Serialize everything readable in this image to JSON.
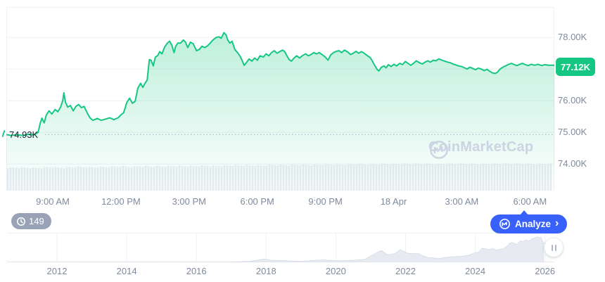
{
  "watermark": {
    "text": "CoinMarketCap"
  },
  "history_badge": {
    "count": "149"
  },
  "analyze_button": {
    "label": "Analyze",
    "chevron": "›"
  },
  "colors": {
    "accent_green": "#16c784",
    "accent_blue": "#3861fb",
    "axis_text": "#7f8a9d",
    "grid": "#eef1f6",
    "dotted_baseline": "#a8b1c2",
    "volume_bar": "#e9edf3",
    "history_fill": "#e7ebf1",
    "history_stroke": "#d8dee8",
    "watermark": "#ccd3e2",
    "badge_gray": "#99a3b5",
    "dark_text": "#1a2433"
  },
  "chart_data": [
    {
      "type": "area",
      "name": "btc-price-24h",
      "line_color": "#16c784",
      "x_ticks": [
        "9:00 AM",
        "12:00 PM",
        "3:00 PM",
        "6:00 PM",
        "9:00 PM",
        "18 Apr",
        "3:00 AM",
        "6:00 AM"
      ],
      "y_ticks": [
        {
          "value": 78,
          "label": "78.00K"
        },
        {
          "value": 77,
          "label": null
        },
        {
          "value": 76,
          "label": "76.00K"
        },
        {
          "value": 75,
          "label": "75.00K"
        },
        {
          "value": 74,
          "label": "74.00K"
        }
      ],
      "ylim": [
        73.16,
        78.96
      ],
      "open_value": 74.93,
      "open_label": "74.93K",
      "last_value": 77.12,
      "last_label": "77.12K",
      "points": [
        [
          0,
          74.93
        ],
        [
          0.009,
          74.9
        ],
        [
          0.019,
          74.93
        ],
        [
          0.03,
          74.9
        ],
        [
          0.04,
          74.94
        ],
        [
          0.05,
          74.92
        ],
        [
          0.058,
          75.0
        ],
        [
          0.062,
          75.3
        ],
        [
          0.065,
          75.45
        ],
        [
          0.069,
          75.3
        ],
        [
          0.073,
          75.55
        ],
        [
          0.078,
          75.68
        ],
        [
          0.083,
          75.58
        ],
        [
          0.089,
          75.72
        ],
        [
          0.094,
          75.65
        ],
        [
          0.099,
          75.8
        ],
        [
          0.103,
          76.0
        ],
        [
          0.105,
          76.25
        ],
        [
          0.108,
          75.95
        ],
        [
          0.112,
          75.8
        ],
        [
          0.117,
          75.85
        ],
        [
          0.122,
          75.68
        ],
        [
          0.127,
          75.82
        ],
        [
          0.132,
          75.88
        ],
        [
          0.137,
          75.78
        ],
        [
          0.142,
          75.82
        ],
        [
          0.148,
          75.6
        ],
        [
          0.153,
          75.45
        ],
        [
          0.158,
          75.38
        ],
        [
          0.166,
          75.44
        ],
        [
          0.173,
          75.38
        ],
        [
          0.181,
          75.42
        ],
        [
          0.189,
          75.46
        ],
        [
          0.196,
          75.4
        ],
        [
          0.204,
          75.46
        ],
        [
          0.209,
          75.55
        ],
        [
          0.214,
          75.62
        ],
        [
          0.22,
          75.95
        ],
        [
          0.225,
          76.08
        ],
        [
          0.23,
          75.92
        ],
        [
          0.235,
          75.98
        ],
        [
          0.24,
          76.4
        ],
        [
          0.245,
          76.55
        ],
        [
          0.249,
          76.42
        ],
        [
          0.253,
          76.55
        ],
        [
          0.257,
          76.65
        ],
        [
          0.261,
          77.3
        ],
        [
          0.264,
          77.28
        ],
        [
          0.268,
          77.1
        ],
        [
          0.272,
          77.38
        ],
        [
          0.276,
          77.42
        ],
        [
          0.28,
          77.55
        ],
        [
          0.284,
          77.48
        ],
        [
          0.289,
          77.7
        ],
        [
          0.294,
          77.82
        ],
        [
          0.298,
          77.88
        ],
        [
          0.302,
          77.75
        ],
        [
          0.306,
          77.52
        ],
        [
          0.309,
          77.72
        ],
        [
          0.313,
          77.82
        ],
        [
          0.318,
          77.82
        ],
        [
          0.323,
          77.92
        ],
        [
          0.327,
          77.85
        ],
        [
          0.331,
          77.68
        ],
        [
          0.336,
          77.85
        ],
        [
          0.341,
          77.8
        ],
        [
          0.347,
          77.58
        ],
        [
          0.352,
          77.62
        ],
        [
          0.357,
          77.72
        ],
        [
          0.362,
          77.68
        ],
        [
          0.367,
          77.73
        ],
        [
          0.372,
          77.82
        ],
        [
          0.377,
          77.92
        ],
        [
          0.383,
          78.0
        ],
        [
          0.388,
          78.02
        ],
        [
          0.392,
          77.97
        ],
        [
          0.397,
          78.15
        ],
        [
          0.401,
          78.08
        ],
        [
          0.404,
          77.92
        ],
        [
          0.408,
          77.82
        ],
        [
          0.412,
          77.88
        ],
        [
          0.417,
          77.62
        ],
        [
          0.422,
          77.52
        ],
        [
          0.426,
          77.42
        ],
        [
          0.43,
          77.28
        ],
        [
          0.434,
          77.12
        ],
        [
          0.438,
          77.2
        ],
        [
          0.443,
          77.32
        ],
        [
          0.448,
          77.25
        ],
        [
          0.453,
          77.35
        ],
        [
          0.458,
          77.28
        ],
        [
          0.463,
          77.42
        ],
        [
          0.469,
          77.38
        ],
        [
          0.474,
          77.48
        ],
        [
          0.479,
          77.42
        ],
        [
          0.484,
          77.52
        ],
        [
          0.489,
          77.58
        ],
        [
          0.494,
          77.5
        ],
        [
          0.499,
          77.55
        ],
        [
          0.504,
          77.6
        ],
        [
          0.508,
          77.55
        ],
        [
          0.512,
          77.42
        ],
        [
          0.516,
          77.3
        ],
        [
          0.52,
          77.25
        ],
        [
          0.525,
          77.35
        ],
        [
          0.53,
          77.42
        ],
        [
          0.535,
          77.35
        ],
        [
          0.54,
          77.42
        ],
        [
          0.546,
          77.48
        ],
        [
          0.551,
          77.42
        ],
        [
          0.556,
          77.46
        ],
        [
          0.561,
          77.52
        ],
        [
          0.566,
          77.48
        ],
        [
          0.571,
          77.52
        ],
        [
          0.576,
          77.46
        ],
        [
          0.582,
          77.38
        ],
        [
          0.587,
          77.28
        ],
        [
          0.592,
          77.45
        ],
        [
          0.597,
          77.52
        ],
        [
          0.602,
          77.56
        ],
        [
          0.607,
          77.58
        ],
        [
          0.612,
          77.52
        ],
        [
          0.617,
          77.6
        ],
        [
          0.623,
          77.54
        ],
        [
          0.628,
          77.46
        ],
        [
          0.633,
          77.5
        ],
        [
          0.638,
          77.56
        ],
        [
          0.643,
          77.5
        ],
        [
          0.648,
          77.55
        ],
        [
          0.653,
          77.5
        ],
        [
          0.659,
          77.42
        ],
        [
          0.664,
          77.36
        ],
        [
          0.668,
          77.25
        ],
        [
          0.671,
          77.15
        ],
        [
          0.677,
          76.98
        ],
        [
          0.68,
          76.94
        ],
        [
          0.684,
          77.05
        ],
        [
          0.689,
          77.1
        ],
        [
          0.693,
          77.04
        ],
        [
          0.697,
          77.14
        ],
        [
          0.702,
          77.08
        ],
        [
          0.707,
          77.15
        ],
        [
          0.712,
          77.1
        ],
        [
          0.718,
          77.18
        ],
        [
          0.723,
          77.14
        ],
        [
          0.728,
          77.24
        ],
        [
          0.733,
          77.18
        ],
        [
          0.738,
          77.12
        ],
        [
          0.743,
          77.18
        ],
        [
          0.748,
          77.26
        ],
        [
          0.754,
          77.2
        ],
        [
          0.759,
          77.16
        ],
        [
          0.764,
          77.22
        ],
        [
          0.769,
          77.26
        ],
        [
          0.774,
          77.22
        ],
        [
          0.779,
          77.28
        ],
        [
          0.784,
          77.26
        ],
        [
          0.789,
          77.32
        ],
        [
          0.795,
          77.28
        ],
        [
          0.8,
          77.25
        ],
        [
          0.805,
          77.22
        ],
        [
          0.81,
          77.2
        ],
        [
          0.815,
          77.16
        ],
        [
          0.82,
          77.13
        ],
        [
          0.825,
          77.1
        ],
        [
          0.831,
          77.08
        ],
        [
          0.836,
          77.04
        ],
        [
          0.841,
          77.0
        ],
        [
          0.846,
          77.06
        ],
        [
          0.851,
          77.02
        ],
        [
          0.856,
          76.98
        ],
        [
          0.861,
          77.03
        ],
        [
          0.867,
          77.0
        ],
        [
          0.872,
          76.95
        ],
        [
          0.877,
          76.99
        ],
        [
          0.882,
          76.93
        ],
        [
          0.887,
          76.88
        ],
        [
          0.892,
          76.86
        ],
        [
          0.896,
          76.9
        ],
        [
          0.901,
          77.0
        ],
        [
          0.906,
          77.06
        ],
        [
          0.911,
          77.1
        ],
        [
          0.917,
          77.15
        ],
        [
          0.922,
          77.18
        ],
        [
          0.927,
          77.14
        ],
        [
          0.932,
          77.11
        ],
        [
          0.937,
          77.15
        ],
        [
          0.942,
          77.18
        ],
        [
          0.947,
          77.14
        ],
        [
          0.952,
          77.11
        ],
        [
          0.958,
          77.15
        ],
        [
          0.964,
          77.12
        ],
        [
          0.97,
          77.15
        ],
        [
          0.977,
          77.11
        ],
        [
          0.983,
          77.14
        ],
        [
          0.989,
          77.12
        ],
        [
          1,
          77.12
        ]
      ]
    },
    {
      "type": "bar",
      "name": "volume-24h",
      "values": [
        0.84,
        0.85,
        0.83,
        0.86,
        0.84,
        0.87,
        0.85,
        0.86,
        0.88,
        0.87,
        0.89,
        0.88,
        0.9,
        0.89,
        0.91,
        0.9,
        0.92,
        0.93,
        0.92,
        0.94,
        0.93,
        0.95,
        0.94,
        0.96,
        0.95,
        0.97,
        0.96,
        0.98,
        0.97,
        0.99,
        0.98,
        0.97,
        0.99,
        0.98,
        0.97,
        0.98,
        0.99,
        0.98,
        0.97,
        0.98
      ]
    },
    {
      "type": "area",
      "name": "btc-price-history",
      "x_ticks": [
        2012,
        2014,
        2016,
        2018,
        2020,
        2022,
        2024,
        2026
      ],
      "ylim": [
        0,
        130
      ],
      "points": [
        [
          2010.6,
          0.2
        ],
        [
          2011,
          0.3
        ],
        [
          2011.5,
          0.2
        ],
        [
          2012,
          0.2
        ],
        [
          2012.5,
          0.3
        ],
        [
          2013,
          1.0
        ],
        [
          2013.9,
          1.2
        ],
        [
          2014.4,
          0.8
        ],
        [
          2015,
          0.4
        ],
        [
          2015.8,
          0.5
        ],
        [
          2016.5,
          0.8
        ],
        [
          2016.9,
          1.2
        ],
        [
          2017.5,
          3.5
        ],
        [
          2017.95,
          15
        ],
        [
          2018.15,
          9.5
        ],
        [
          2018.5,
          8
        ],
        [
          2018.95,
          4
        ],
        [
          2019.4,
          9
        ],
        [
          2019.6,
          11
        ],
        [
          2019.9,
          8
        ],
        [
          2020.2,
          7
        ],
        [
          2020.6,
          10
        ],
        [
          2020.85,
          14
        ],
        [
          2021.0,
          30
        ],
        [
          2021.1,
          37
        ],
        [
          2021.25,
          50
        ],
        [
          2021.32,
          54
        ],
        [
          2021.45,
          38
        ],
        [
          2021.55,
          34
        ],
        [
          2021.7,
          41
        ],
        [
          2021.85,
          58
        ],
        [
          2021.95,
          51
        ],
        [
          2022.05,
          42
        ],
        [
          2022.2,
          40
        ],
        [
          2022.35,
          42
        ],
        [
          2022.5,
          30
        ],
        [
          2022.65,
          22
        ],
        [
          2022.8,
          20
        ],
        [
          2022.95,
          16.5
        ],
        [
          2023.1,
          21
        ],
        [
          2023.3,
          25
        ],
        [
          2023.5,
          27
        ],
        [
          2023.7,
          29
        ],
        [
          2023.85,
          34
        ],
        [
          2023.95,
          42
        ],
        [
          2024.1,
          48
        ],
        [
          2024.2,
          64
        ],
        [
          2024.3,
          62
        ],
        [
          2024.4,
          58
        ],
        [
          2024.5,
          64
        ],
        [
          2024.6,
          56
        ],
        [
          2024.7,
          60
        ],
        [
          2024.8,
          62
        ],
        [
          2024.9,
          72
        ],
        [
          2024.97,
          85
        ],
        [
          2025.05,
          92
        ],
        [
          2025.1,
          88
        ],
        [
          2025.2,
          82
        ],
        [
          2025.3,
          100
        ],
        [
          2025.38,
          95
        ],
        [
          2025.45,
          103
        ],
        [
          2025.55,
          98
        ],
        [
          2025.62,
          108
        ],
        [
          2025.7,
          112
        ],
        [
          2025.78,
          118
        ],
        [
          2025.83,
          112
        ],
        [
          2025.88,
          116
        ],
        [
          2025.95,
          92
        ]
      ],
      "unselected_points": [
        [
          2025.95,
          92
        ],
        [
          2026.0,
          86
        ],
        [
          2026.08,
          94
        ],
        [
          2026.15,
          90
        ],
        [
          2026.22,
          88
        ]
      ]
    }
  ]
}
